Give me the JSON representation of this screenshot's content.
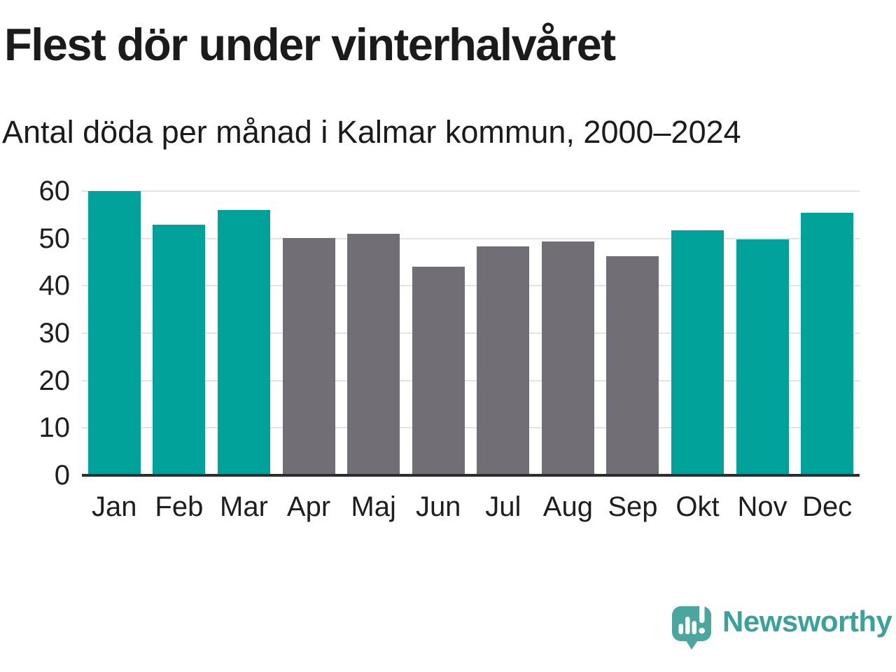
{
  "header": {
    "title": "Flest dör under vinterhalvåret",
    "subtitle": "Antal döda per månad i Kalmar kommun, 2000–2024"
  },
  "chart_data": {
    "type": "bar",
    "title": "Flest dör under vinterhalvåret",
    "subtitle": "Antal döda per månad i Kalmar kommun, 2000–2024",
    "categories": [
      "Jan",
      "Feb",
      "Mar",
      "Apr",
      "Maj",
      "Jun",
      "Jul",
      "Aug",
      "Sep",
      "Okt",
      "Nov",
      "Dec"
    ],
    "values": [
      60,
      52.9,
      56,
      50.1,
      51,
      44,
      48.4,
      49.3,
      46.3,
      51.7,
      49.8,
      55.4
    ],
    "groups": [
      "winter",
      "winter",
      "winter",
      "summer",
      "summer",
      "summer",
      "summer",
      "summer",
      "summer",
      "winter",
      "winter",
      "winter"
    ],
    "group_colors": {
      "winter": "#00A29A",
      "summer": "#716E76"
    },
    "xlabel": "",
    "ylabel": "",
    "ylim": [
      0,
      60
    ],
    "yticks": [
      0,
      10,
      20,
      30,
      40,
      50,
      60
    ],
    "grid": "horizontal",
    "gridline_color": "#E3E3E3",
    "axis_line_color": "#2D2D2D",
    "legend": "none"
  },
  "footer": {
    "brand": "Newsworthy",
    "brand_color": "#3BA29B",
    "logo_bubble_color": "#4BA6A0",
    "logo_icon": "speech-bubble-bar-chart-exclamation"
  }
}
